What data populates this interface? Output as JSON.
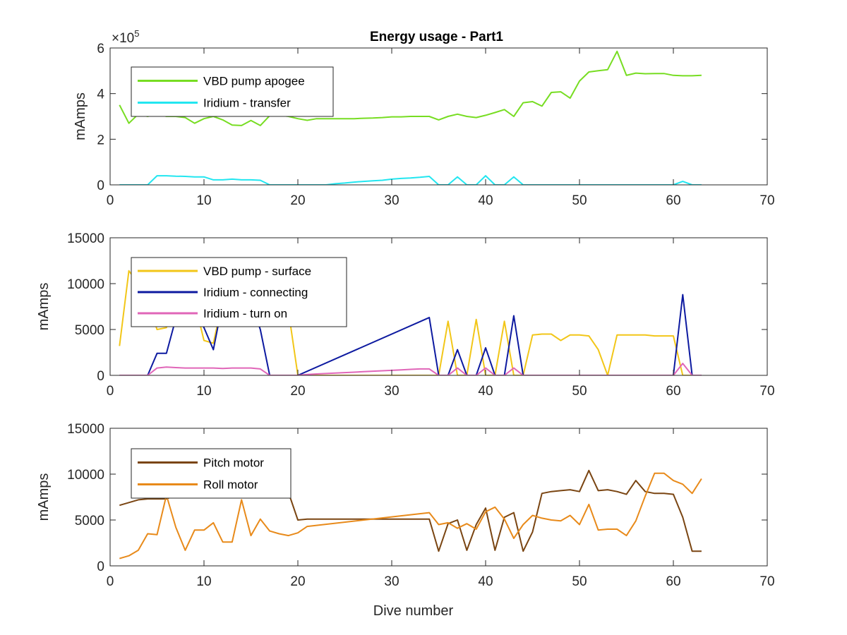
{
  "chart_data": [
    {
      "type": "line",
      "title": "Energy usage - Part1",
      "xlabel": "",
      "ylabel": "mAmps",
      "xlim": [
        0,
        70
      ],
      "ylim": [
        0,
        600000
      ],
      "x_ticks": [
        0,
        10,
        20,
        30,
        40,
        50,
        60,
        70
      ],
      "x_tick_labels": [
        "0",
        "10",
        "20",
        "30",
        "40",
        "50",
        "60",
        "70"
      ],
      "y_ticks": [
        0,
        200000,
        400000,
        600000
      ],
      "y_tick_labels": [
        "0",
        "2",
        "4",
        "6"
      ],
      "y_exponent_label": "×10",
      "y_exponent_power": "5",
      "grid": false,
      "legend_position": "top-left",
      "series": [
        {
          "name": "VBD pump apogee",
          "color": "#77dd22",
          "x": [
            1,
            2,
            3,
            4,
            5,
            6,
            7,
            8,
            9,
            10,
            11,
            12,
            13,
            14,
            15,
            16,
            17,
            18,
            19,
            20,
            21,
            22,
            23,
            24,
            25,
            26,
            27,
            28,
            29,
            30,
            31,
            32,
            33,
            34,
            35,
            36,
            37,
            38,
            39,
            40,
            41,
            42,
            43,
            44,
            45,
            46,
            47,
            48,
            49,
            50,
            51,
            52,
            53,
            54,
            55,
            56,
            57,
            58,
            59,
            60,
            61,
            62,
            63
          ],
          "y": [
            350000,
            270000,
            310000,
            300000,
            310000,
            300000,
            300000,
            295000,
            270000,
            290000,
            300000,
            285000,
            262000,
            260000,
            282000,
            260000,
            303000,
            305000,
            300000,
            290000,
            283000,
            290000,
            290000,
            290000,
            290000,
            290000,
            292000,
            293000,
            295000,
            298000,
            298000,
            300000,
            300000,
            300000,
            285000,
            300000,
            310000,
            300000,
            295000,
            305000,
            317000,
            330000,
            300000,
            360000,
            365000,
            345000,
            405000,
            408000,
            380000,
            455000,
            495000,
            500000,
            505000,
            585000,
            480000,
            490000,
            487000,
            488000,
            488000,
            480000,
            478000,
            478000,
            480000
          ]
        },
        {
          "name": "Iridium - transfer",
          "color": "#22e6f0",
          "x": [
            1,
            2,
            3,
            4,
            5,
            6,
            7,
            8,
            9,
            10,
            11,
            12,
            13,
            14,
            15,
            16,
            17,
            18,
            19,
            20,
            21,
            22,
            23,
            24,
            25,
            26,
            27,
            28,
            29,
            30,
            31,
            32,
            33,
            34,
            35,
            36,
            37,
            38,
            39,
            40,
            41,
            42,
            43,
            44,
            45,
            46,
            47,
            48,
            49,
            50,
            51,
            52,
            53,
            54,
            55,
            56,
            57,
            58,
            59,
            60,
            61,
            62,
            63
          ],
          "y": [
            0,
            0,
            0,
            0,
            40000,
            40000,
            38000,
            37000,
            35000,
            35000,
            22000,
            22000,
            25000,
            22000,
            22000,
            20000,
            0,
            0,
            0,
            0,
            0,
            0,
            0,
            5000,
            8000,
            12000,
            15000,
            18000,
            20000,
            25000,
            28000,
            30000,
            33000,
            37000,
            0,
            0,
            35000,
            0,
            0,
            40000,
            0,
            0,
            35000,
            0,
            0,
            0,
            0,
            0,
            0,
            0,
            0,
            0,
            0,
            0,
            0,
            0,
            0,
            0,
            0,
            0,
            15000,
            0,
            0
          ]
        }
      ]
    },
    {
      "type": "line",
      "title": "",
      "xlabel": "",
      "ylabel": "mAmps",
      "xlim": [
        0,
        70
      ],
      "ylim": [
        0,
        15000
      ],
      "x_ticks": [
        0,
        10,
        20,
        30,
        40,
        50,
        60,
        70
      ],
      "x_tick_labels": [
        "0",
        "10",
        "20",
        "30",
        "40",
        "50",
        "60",
        "70"
      ],
      "y_ticks": [
        0,
        5000,
        10000,
        15000
      ],
      "y_tick_labels": [
        "0",
        "5000",
        "10000",
        "15000"
      ],
      "grid": false,
      "legend_position": "top-left",
      "series": [
        {
          "name": "VBD pump - surface",
          "color": "#f2c618",
          "x": [
            1,
            2,
            3,
            4,
            5,
            6,
            7,
            8,
            9,
            10,
            11,
            12,
            13,
            14,
            15,
            16,
            17,
            18,
            19,
            20,
            21,
            22,
            23,
            24,
            25,
            26,
            27,
            28,
            29,
            30,
            31,
            32,
            33,
            34,
            35,
            36,
            37,
            38,
            39,
            40,
            41,
            42,
            43,
            44,
            45,
            46,
            47,
            48,
            49,
            50,
            51,
            52,
            53,
            54,
            55,
            56,
            57,
            58,
            59,
            60,
            61,
            62,
            63
          ],
          "y": [
            3200,
            11400,
            10000,
            8000,
            5000,
            5200,
            9000,
            9200,
            8000,
            3800,
            3500,
            8200,
            8000,
            8000,
            8000,
            8000,
            7800,
            7000,
            7000,
            0,
            0,
            0,
            0,
            0,
            0,
            0,
            0,
            0,
            0,
            0,
            0,
            0,
            0,
            0,
            0,
            5900,
            0,
            0,
            6100,
            0,
            0,
            5900,
            0,
            0,
            4400,
            4500,
            4500,
            3800,
            4400,
            4400,
            4300,
            2800,
            0,
            4400,
            4400,
            4400,
            4400,
            4300,
            4300,
            4300,
            0,
            0,
            0
          ]
        },
        {
          "name": "Iridium - connecting",
          "color": "#0d1aa0",
          "x": [
            1,
            2,
            3,
            4,
            5,
            6,
            7,
            8,
            9,
            10,
            11,
            12,
            13,
            14,
            15,
            16,
            17,
            18,
            19,
            20,
            34,
            35,
            36,
            37,
            38,
            39,
            40,
            41,
            42,
            43,
            44,
            45,
            46,
            47,
            48,
            49,
            50,
            51,
            52,
            53,
            54,
            55,
            56,
            57,
            58,
            59,
            60,
            61,
            62,
            63
          ],
          "y": [
            0,
            0,
            0,
            0,
            2400,
            2400,
            6200,
            7500,
            7200,
            5200,
            2800,
            8000,
            8000,
            8000,
            8000,
            5000,
            0,
            0,
            0,
            0,
            6300,
            0,
            0,
            2800,
            0,
            0,
            3000,
            0,
            0,
            6500,
            0,
            0,
            0,
            0,
            0,
            0,
            0,
            0,
            0,
            0,
            0,
            0,
            0,
            0,
            0,
            0,
            0,
            8800,
            0,
            0
          ]
        },
        {
          "name": "Iridium - turn on",
          "color": "#e066b8",
          "x": [
            1,
            2,
            3,
            4,
            5,
            6,
            7,
            8,
            9,
            10,
            11,
            12,
            13,
            14,
            15,
            16,
            17,
            18,
            19,
            20,
            21,
            22,
            23,
            24,
            25,
            26,
            27,
            28,
            29,
            30,
            31,
            32,
            33,
            34,
            35,
            36,
            37,
            38,
            39,
            40,
            41,
            42,
            43,
            44,
            45,
            46,
            47,
            48,
            49,
            50,
            51,
            52,
            53,
            54,
            55,
            56,
            57,
            58,
            59,
            60,
            61,
            62,
            63
          ],
          "y": [
            0,
            0,
            0,
            0,
            800,
            900,
            850,
            800,
            800,
            800,
            800,
            750,
            800,
            800,
            800,
            700,
            0,
            0,
            0,
            0,
            100,
            150,
            200,
            250,
            300,
            350,
            400,
            450,
            500,
            550,
            600,
            650,
            700,
            700,
            0,
            0,
            800,
            0,
            0,
            800,
            0,
            0,
            800,
            0,
            0,
            0,
            0,
            0,
            0,
            0,
            0,
            0,
            0,
            0,
            0,
            0,
            0,
            0,
            0,
            0,
            1300,
            0,
            0
          ]
        }
      ]
    },
    {
      "type": "line",
      "title": "",
      "xlabel": "Dive number",
      "ylabel": "mAmps",
      "xlim": [
        0,
        70
      ],
      "ylim": [
        0,
        15000
      ],
      "x_ticks": [
        0,
        10,
        20,
        30,
        40,
        50,
        60,
        70
      ],
      "x_tick_labels": [
        "0",
        "10",
        "20",
        "30",
        "40",
        "50",
        "60",
        "70"
      ],
      "y_ticks": [
        0,
        5000,
        10000,
        15000
      ],
      "y_tick_labels": [
        "0",
        "5000",
        "10000",
        "15000"
      ],
      "grid": false,
      "legend_position": "top-left",
      "series": [
        {
          "name": "Pitch motor",
          "color": "#7a4512",
          "x": [
            1,
            2,
            3,
            4,
            5,
            6,
            7,
            8,
            9,
            10,
            11,
            12,
            13,
            14,
            15,
            16,
            17,
            18,
            19,
            20,
            21,
            34,
            35,
            36,
            37,
            38,
            39,
            40,
            41,
            42,
            43,
            44,
            45,
            46,
            47,
            48,
            49,
            50,
            51,
            52,
            53,
            54,
            55,
            56,
            57,
            58,
            59,
            60,
            61,
            62,
            63
          ],
          "y": [
            6600,
            6900,
            7200,
            7300,
            7300,
            7300,
            7700,
            8000,
            8200,
            7800,
            8000,
            8000,
            8000,
            8000,
            8000,
            8000,
            8000,
            8000,
            8000,
            5000,
            5100,
            5100,
            1600,
            4600,
            5000,
            1700,
            4500,
            6300,
            1700,
            5300,
            5800,
            1600,
            3700,
            7900,
            8100,
            8200,
            8300,
            8100,
            10400,
            8200,
            8300,
            8100,
            7800,
            9300,
            8100,
            7900,
            7900,
            7800,
            5300,
            1600,
            1600
          ]
        },
        {
          "name": "Roll motor",
          "color": "#e88a1a",
          "x": [
            1,
            2,
            3,
            4,
            5,
            6,
            7,
            8,
            9,
            10,
            11,
            12,
            13,
            14,
            15,
            16,
            17,
            18,
            19,
            20,
            21,
            34,
            35,
            36,
            37,
            38,
            39,
            40,
            41,
            42,
            43,
            44,
            45,
            46,
            47,
            48,
            49,
            50,
            51,
            52,
            53,
            54,
            55,
            56,
            57,
            58,
            59,
            60,
            61,
            62,
            63
          ],
          "y": [
            800,
            1100,
            1700,
            3500,
            3400,
            7700,
            4200,
            1700,
            3900,
            3900,
            4700,
            2600,
            2600,
            7200,
            3300,
            5100,
            3800,
            3500,
            3300,
            3600,
            4300,
            5800,
            4500,
            4700,
            4100,
            4600,
            4000,
            5900,
            6400,
            5100,
            3000,
            4500,
            5500,
            5200,
            5000,
            4900,
            5500,
            4500,
            6700,
            3900,
            4000,
            4000,
            3300,
            4900,
            7600,
            10100,
            10100,
            9300,
            8900,
            7900,
            9500
          ]
        }
      ]
    }
  ]
}
